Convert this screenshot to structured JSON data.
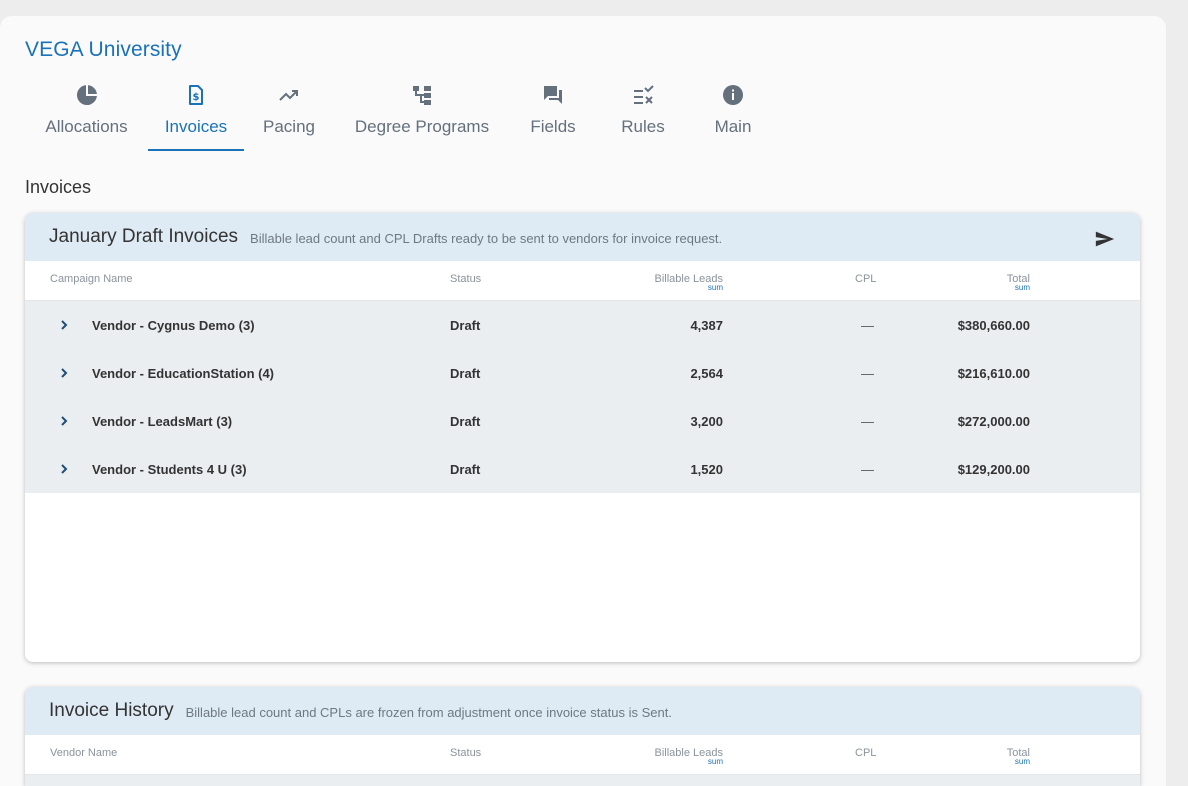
{
  "app": {
    "title": "VEGA University"
  },
  "tabs": [
    {
      "label": "Allocations",
      "icon": "pie-chart-icon",
      "active": false
    },
    {
      "label": "Invoices",
      "icon": "invoice-dollar-icon",
      "active": true
    },
    {
      "label": "Pacing",
      "icon": "trending-up-icon",
      "active": false
    },
    {
      "label": "Degree Programs",
      "icon": "hierarchy-icon",
      "active": false
    },
    {
      "label": "Fields",
      "icon": "chat-bubbles-icon",
      "active": false
    },
    {
      "label": "Rules",
      "icon": "rule-check-icon",
      "active": false
    },
    {
      "label": "Main",
      "icon": "info-icon",
      "active": false
    }
  ],
  "section": {
    "title": "Invoices"
  },
  "drafts": {
    "title": "January Draft Invoices",
    "subtitle": "Billable lead count and CPL Drafts ready to be sent to vendors for invoice request.",
    "columns": {
      "name": "Campaign Name",
      "status": "Status",
      "leads": "Billable Leads",
      "leads_tag": "sum",
      "cpl": "CPL",
      "total": "Total",
      "total_tag": "sum"
    },
    "rows": [
      {
        "name": "Vendor - Cygnus Demo (3)",
        "status": "Draft",
        "leads": "4,387",
        "cpl": "—",
        "total": "$380,660.00"
      },
      {
        "name": "Vendor - EducationStation (4)",
        "status": "Draft",
        "leads": "2,564",
        "cpl": "—",
        "total": "$216,610.00"
      },
      {
        "name": "Vendor - LeadsMart (3)",
        "status": "Draft",
        "leads": "3,200",
        "cpl": "—",
        "total": "$272,000.00"
      },
      {
        "name": "Vendor - Students 4 U (3)",
        "status": "Draft",
        "leads": "1,520",
        "cpl": "—",
        "total": "$129,200.00"
      }
    ]
  },
  "history": {
    "title": "Invoice History",
    "subtitle": "Billable lead count and CPLs are frozen from adjustment once invoice status is Sent.",
    "columns": {
      "name": "Vendor Name",
      "status": "Status",
      "leads": "Billable Leads",
      "leads_tag": "sum",
      "cpl": "CPL",
      "total": "Total",
      "total_tag": "sum"
    }
  },
  "colors": {
    "accent": "#1a72b8",
    "header_bg": "#dfebf4",
    "row_bg": "#ebeef0"
  }
}
